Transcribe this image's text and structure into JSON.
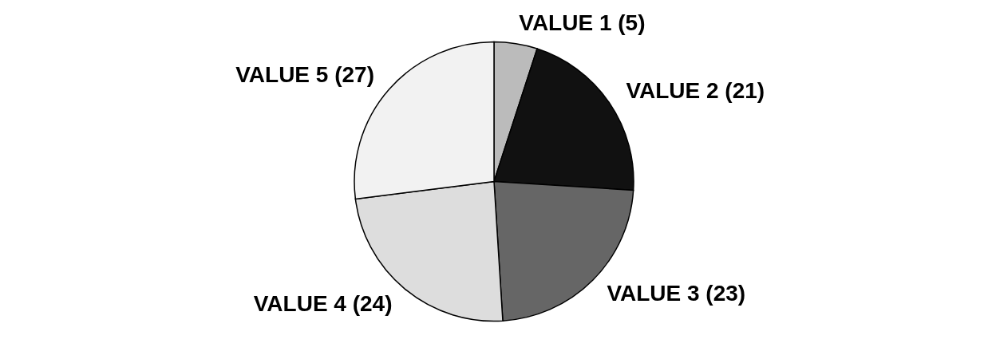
{
  "chart_data": {
    "type": "pie",
    "categories": [
      "VALUE 1",
      "VALUE 2",
      "VALUE 3",
      "VALUE 4",
      "VALUE 5"
    ],
    "values": [
      5,
      21,
      23,
      24,
      27
    ],
    "value_labels": [
      "(5)",
      "(21)",
      "(23)",
      "(24)",
      "(27)"
    ],
    "colors": [
      "#bbbbbb",
      "#111111",
      "#666666",
      "#dddddd",
      "#f2f2f2"
    ],
    "legend": false
  }
}
